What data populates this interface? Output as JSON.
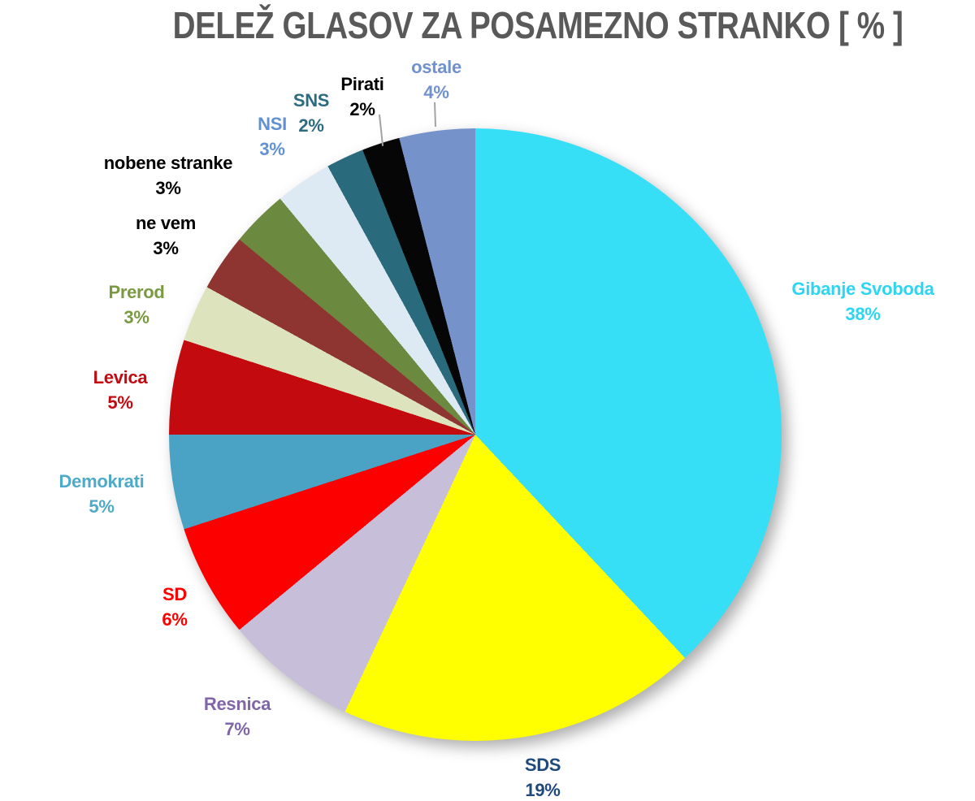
{
  "title": "DELEŽ GLASOV ZA POSAMEZNO STRANKO [ % ]",
  "chart_data": {
    "type": "pie",
    "title": "DELEŽ GLASOV ZA POSAMEZNO STRANKO [ % ]",
    "unit": "%",
    "start_angle_deg": 0,
    "direction": "clockwise",
    "legend": "none",
    "label_style": "outside, party name above percent value, colored per slice",
    "series": [
      {
        "label": "Gibanje Svoboda",
        "value": 38,
        "pct": "38%",
        "slice_color": "#36DEF6",
        "label_color": "#2ED5F2"
      },
      {
        "label": "SDS",
        "value": 19,
        "pct": "19%",
        "slice_color": "#FFFF00",
        "label_color": "#1F497D"
      },
      {
        "label": "Resnica",
        "value": 7,
        "pct": "7%",
        "slice_color": "#C7BED9",
        "label_color": "#7F66A6"
      },
      {
        "label": "SD",
        "value": 6,
        "pct": "6%",
        "slice_color": "#FC0000",
        "label_color": "#FE0000"
      },
      {
        "label": "Demokrati",
        "value": 5,
        "pct": "5%",
        "slice_color": "#4AA3C5",
        "label_color": "#4FA9C8"
      },
      {
        "label": "Levica",
        "value": 5,
        "pct": "5%",
        "slice_color": "#C30B0F",
        "label_color": "#C20B10"
      },
      {
        "label": "Prerod",
        "value": 3,
        "pct": "3%",
        "slice_color": "#DCE3BD",
        "label_color": "#7A9A42"
      },
      {
        "label": "ne vem",
        "value": 3,
        "pct": "3%",
        "slice_color": "#8E3532",
        "label_color": "#000000"
      },
      {
        "label": "nobene stranke",
        "value": 3,
        "pct": "3%",
        "slice_color": "#6C8A3F",
        "label_color": "#000000"
      },
      {
        "label": "NSI",
        "value": 3,
        "pct": "3%",
        "slice_color": "#DEEAF3",
        "label_color": "#6290D5"
      },
      {
        "label": "SNS",
        "value": 2,
        "pct": "2%",
        "slice_color": "#296A7D",
        "label_color": "#2C6B80"
      },
      {
        "label": "Pirati",
        "value": 2,
        "pct": "2%",
        "slice_color": "#060606",
        "label_color": "#000000"
      },
      {
        "label": "ostale",
        "value": 4,
        "pct": "4%",
        "slice_color": "#7593CA",
        "label_color": "#7191CE"
      }
    ]
  }
}
